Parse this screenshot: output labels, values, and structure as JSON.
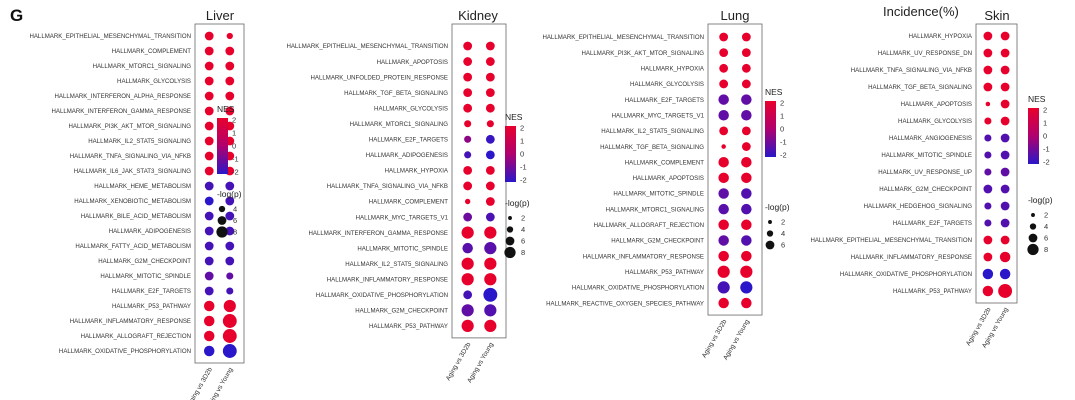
{
  "figure": {
    "panel_letter": "G",
    "header_text": "Incidence(%)",
    "colors": {
      "high": "#e8002d",
      "mid": "#b0006e",
      "low": "#2a17c9"
    }
  },
  "chart_data": [
    {
      "type": "dotplot",
      "title": "Liver",
      "columns": [
        "Aging vs 3D2b",
        "Aging vs Young"
      ],
      "rows": [
        {
          "label": "HALLMARK_EPITHELIAL_MESENCHYMAL_TRANSITION",
          "nes": [
            2.0,
            2.0
          ],
          "logp": [
            4,
            2.5
          ]
        },
        {
          "label": "HALLMARK_COMPLEMENT",
          "nes": [
            2.0,
            2.0
          ],
          "logp": [
            4,
            4
          ]
        },
        {
          "label": "HALLMARK_MTORC1_SIGNALING",
          "nes": [
            2.0,
            2.0
          ],
          "logp": [
            4,
            4
          ]
        },
        {
          "label": "HALLMARK_GLYCOLYSIS",
          "nes": [
            2.0,
            2.0
          ],
          "logp": [
            4,
            4
          ]
        },
        {
          "label": "HALLMARK_INTERFERON_ALPHA_RESPONSE",
          "nes": [
            2.0,
            2.0
          ],
          "logp": [
            4,
            4
          ]
        },
        {
          "label": "HALLMARK_INTERFERON_GAMMA_RESPONSE",
          "nes": [
            2.0,
            2.0
          ],
          "logp": [
            4,
            4
          ]
        },
        {
          "label": "HALLMARK_PI3K_AKT_MTOR_SIGNALING",
          "nes": [
            2.0,
            2.0
          ],
          "logp": [
            4,
            4
          ]
        },
        {
          "label": "HALLMARK_IL2_STAT5_SIGNALING",
          "nes": [
            2.0,
            2.0
          ],
          "logp": [
            4,
            4
          ]
        },
        {
          "label": "HALLMARK_TNFA_SIGNALING_VIA_NFKB",
          "nes": [
            2.0,
            2.0
          ],
          "logp": [
            4,
            4
          ]
        },
        {
          "label": "HALLMARK_IL6_JAK_STAT3_SIGNALING",
          "nes": [
            2.0,
            2.0
          ],
          "logp": [
            4,
            4
          ]
        },
        {
          "label": "HALLMARK_HEME_METABOLISM",
          "nes": [
            -1.6,
            -1.6
          ],
          "logp": [
            4,
            4
          ]
        },
        {
          "label": "HALLMARK_XENOBIOTIC_METABOLISM",
          "nes": [
            -2.5,
            -1.6
          ],
          "logp": [
            4,
            4
          ]
        },
        {
          "label": "HALLMARK_BILE_ACID_METABOLISM",
          "nes": [
            -1.6,
            -1.6
          ],
          "logp": [
            4,
            4
          ]
        },
        {
          "label": "HALLMARK_ADIPOGENESIS",
          "nes": [
            -1.6,
            -1.6
          ],
          "logp": [
            4,
            4
          ]
        },
        {
          "label": "HALLMARK_FATTY_ACID_METABOLISM",
          "nes": [
            -1.6,
            -1.6
          ],
          "logp": [
            4,
            4
          ]
        },
        {
          "label": "HALLMARK_G2M_CHECKPOINT",
          "nes": [
            -1.6,
            -1.6
          ],
          "logp": [
            4,
            4
          ]
        },
        {
          "label": "HALLMARK_MITOTIC_SPINDLE",
          "nes": [
            -1.2,
            -1.2
          ],
          "logp": [
            4,
            3
          ]
        },
        {
          "label": "HALLMARK_E2F_TARGETS",
          "nes": [
            -1.6,
            -1.6
          ],
          "logp": [
            4,
            3
          ]
        },
        {
          "label": "HALLMARK_P53_PATHWAY",
          "nes": [
            2.0,
            2.0
          ],
          "logp": [
            5,
            6
          ]
        },
        {
          "label": "HALLMARK_INFLAMMATORY_RESPONSE",
          "nes": [
            2.0,
            2.0
          ],
          "logp": [
            5,
            7
          ]
        },
        {
          "label": "HALLMARK_ALLOGRAFT_REJECTION",
          "nes": [
            2.0,
            2.0
          ],
          "logp": [
            5,
            7
          ]
        },
        {
          "label": "HALLMARK_OXIDATIVE_PHOSPHORYLATION",
          "nes": [
            -2.5,
            -2.5
          ],
          "logp": [
            5,
            7
          ]
        }
      ],
      "legend": {
        "color_title": "NES",
        "color_ticks": [
          "2",
          "1",
          "0",
          "-1",
          "-2"
        ],
        "size_title": "-log(p)",
        "size_ticks": [
          "4",
          "6",
          "8"
        ]
      }
    },
    {
      "type": "dotplot",
      "title": "Kidney",
      "columns": [
        "Aging vs 3D2b",
        "Aging vs Young"
      ],
      "rows": [
        {
          "label": "HALLMARK_EPITHELIAL_MESENCHYMAL_TRANSITION",
          "nes": [
            2.0,
            2.0
          ],
          "logp": [
            4,
            4
          ]
        },
        {
          "label": "HALLMARK_APOPTOSIS",
          "nes": [
            2.0,
            2.0
          ],
          "logp": [
            4,
            4
          ]
        },
        {
          "label": "HALLMARK_UNFOLDED_PROTEIN_RESPONSE",
          "nes": [
            2.0,
            2.0
          ],
          "logp": [
            4,
            4
          ]
        },
        {
          "label": "HALLMARK_TGF_BETA_SIGNALING",
          "nes": [
            2.0,
            2.0
          ],
          "logp": [
            4,
            4
          ]
        },
        {
          "label": "HALLMARK_GLYCOLYSIS",
          "nes": [
            2.0,
            2.0
          ],
          "logp": [
            4,
            4
          ]
        },
        {
          "label": "HALLMARK_MTORC1_SIGNALING",
          "nes": [
            2.0,
            2.0
          ],
          "logp": [
            3,
            3
          ]
        },
        {
          "label": "HALLMARK_E2F_TARGETS",
          "nes": [
            -0.5,
            -1.8
          ],
          "logp": [
            3,
            4
          ]
        },
        {
          "label": "HALLMARK_ADIPOGENESIS",
          "nes": [
            -1.6,
            -2.0
          ],
          "logp": [
            3,
            4
          ]
        },
        {
          "label": "HALLMARK_HYPOXIA",
          "nes": [
            2.0,
            2.0
          ],
          "logp": [
            4,
            4
          ]
        },
        {
          "label": "HALLMARK_TNFA_SIGNALING_VIA_NFKB",
          "nes": [
            2.0,
            2.0
          ],
          "logp": [
            4,
            4
          ]
        },
        {
          "label": "HALLMARK_COMPLEMENT",
          "nes": [
            2.0,
            2.0
          ],
          "logp": [
            2,
            4
          ]
        },
        {
          "label": "HALLMARK_MYC_TARGETS_V1",
          "nes": [
            -1.0,
            -1.5
          ],
          "logp": [
            4,
            4
          ]
        },
        {
          "label": "HALLMARK_INTERFERON_GAMMA_RESPONSE",
          "nes": [
            2.0,
            2.0
          ],
          "logp": [
            6,
            6
          ]
        },
        {
          "label": "HALLMARK_MITOTIC_SPINDLE",
          "nes": [
            -1.3,
            -1.3
          ],
          "logp": [
            5,
            6
          ]
        },
        {
          "label": "HALLMARK_IL2_STAT5_SIGNALING",
          "nes": [
            2.0,
            2.0
          ],
          "logp": [
            6,
            6
          ]
        },
        {
          "label": "HALLMARK_INFLAMMATORY_RESPONSE",
          "nes": [
            2.0,
            2.0
          ],
          "logp": [
            6,
            6
          ]
        },
        {
          "label": "HALLMARK_OXIDATIVE_PHOSPHORYLATION",
          "nes": [
            -1.6,
            -2.5
          ],
          "logp": [
            4,
            7
          ]
        },
        {
          "label": "HALLMARK_G2M_CHECKPOINT",
          "nes": [
            -1.2,
            -1.4
          ],
          "logp": [
            6,
            6
          ]
        },
        {
          "label": "HALLMARK_P53_PATHWAY",
          "nes": [
            2.0,
            2.0
          ],
          "logp": [
            6,
            6
          ]
        }
      ],
      "legend": {
        "color_title": "NES",
        "color_ticks": [
          "2",
          "1",
          "0",
          "-1",
          "-2"
        ],
        "size_title": "-log(p)",
        "size_ticks": [
          "2",
          "4",
          "6",
          "8"
        ]
      }
    },
    {
      "type": "dotplot",
      "title": "Lung",
      "columns": [
        "Aging vs 3D2b",
        "Aging vs Young"
      ],
      "rows": [
        {
          "label": "HALLMARK_EPITHELIAL_MESENCHYMAL_TRANSITION",
          "nes": [
            2.0,
            2.0
          ],
          "logp": [
            4,
            4
          ]
        },
        {
          "label": "HALLMARK_PI3K_AKT_MTOR_SIGNALING",
          "nes": [
            2.0,
            2.0
          ],
          "logp": [
            4,
            4
          ]
        },
        {
          "label": "HALLMARK_HYPOXIA",
          "nes": [
            2.0,
            2.0
          ],
          "logp": [
            4,
            4
          ]
        },
        {
          "label": "HALLMARK_GLYCOLYSIS",
          "nes": [
            2.0,
            2.0
          ],
          "logp": [
            4,
            4
          ]
        },
        {
          "label": "HALLMARK_E2F_TARGETS",
          "nes": [
            -1.2,
            -1.2
          ],
          "logp": [
            5,
            5
          ]
        },
        {
          "label": "HALLMARK_MYC_TARGETS_V1",
          "nes": [
            -1.2,
            -1.2
          ],
          "logp": [
            5,
            5
          ]
        },
        {
          "label": "HALLMARK_IL2_STAT5_SIGNALING",
          "nes": [
            2.0,
            2.0
          ],
          "logp": [
            4,
            4
          ]
        },
        {
          "label": "HALLMARK_TGF_BETA_SIGNALING",
          "nes": [
            2.0,
            2.0
          ],
          "logp": [
            1.5,
            4
          ]
        },
        {
          "label": "HALLMARK_COMPLEMENT",
          "nes": [
            2.0,
            2.0
          ],
          "logp": [
            5,
            5
          ]
        },
        {
          "label": "HALLMARK_APOPTOSIS",
          "nes": [
            2.0,
            2.0
          ],
          "logp": [
            5,
            5
          ]
        },
        {
          "label": "HALLMARK_MITOTIC_SPINDLE",
          "nes": [
            -1.2,
            -1.4
          ],
          "logp": [
            5,
            5
          ]
        },
        {
          "label": "HALLMARK_MTORC1_SIGNALING",
          "nes": [
            -1.3,
            -1.4
          ],
          "logp": [
            5,
            5
          ]
        },
        {
          "label": "HALLMARK_ALLOGRAFT_REJECTION",
          "nes": [
            2.0,
            2.0
          ],
          "logp": [
            5,
            5
          ]
        },
        {
          "label": "HALLMARK_G2M_CHECKPOINT",
          "nes": [
            -1.2,
            -1.4
          ],
          "logp": [
            5,
            5
          ]
        },
        {
          "label": "HALLMARK_INFLAMMATORY_RESPONSE",
          "nes": [
            2.0,
            2.0
          ],
          "logp": [
            5,
            5
          ]
        },
        {
          "label": "HALLMARK_P53_PATHWAY",
          "nes": [
            2.0,
            2.0
          ],
          "logp": [
            6,
            6
          ]
        },
        {
          "label": "HALLMARK_OXIDATIVE_PHOSPHORYLATION",
          "nes": [
            -1.6,
            -2.5
          ],
          "logp": [
            6,
            6
          ]
        },
        {
          "label": "HALLMARK_REACTIVE_OXYGEN_SPECIES_PATHWAY",
          "nes": [
            2.0,
            2.0
          ],
          "logp": [
            5,
            5
          ]
        }
      ],
      "legend": {
        "color_title": "NES",
        "color_ticks": [
          "2",
          "1",
          "0",
          "-1",
          "-2"
        ],
        "size_title": "-log(p)",
        "size_ticks": [
          "2",
          "4",
          "6"
        ]
      }
    },
    {
      "type": "dotplot",
      "title": "Skin",
      "columns": [
        "Aging vs 3D2b",
        "Aging vs Young"
      ],
      "rows": [
        {
          "label": "HALLMARK_HYPOXIA",
          "nes": [
            2.0,
            2.0
          ],
          "logp": [
            4,
            4
          ]
        },
        {
          "label": "HALLMARK_UV_RESPONSE_DN",
          "nes": [
            2.0,
            2.0
          ],
          "logp": [
            4,
            4
          ]
        },
        {
          "label": "HALLMARK_TNFA_SIGNALING_VIA_NFKB",
          "nes": [
            2.0,
            2.0
          ],
          "logp": [
            4,
            4
          ]
        },
        {
          "label": "HALLMARK_TGF_BETA_SIGNALING",
          "nes": [
            2.0,
            2.0
          ],
          "logp": [
            4,
            4
          ]
        },
        {
          "label": "HALLMARK_APOPTOSIS",
          "nes": [
            2.0,
            2.0
          ],
          "logp": [
            1.5,
            4
          ]
        },
        {
          "label": "HALLMARK_GLYCOLYSIS",
          "nes": [
            2.0,
            2.0
          ],
          "logp": [
            3,
            4
          ]
        },
        {
          "label": "HALLMARK_ANGIOGENESIS",
          "nes": [
            -1.4,
            -1.4
          ],
          "logp": [
            3,
            4
          ]
        },
        {
          "label": "HALLMARK_MITOTIC_SPINDLE",
          "nes": [
            -1.4,
            -1.4
          ],
          "logp": [
            3,
            4
          ]
        },
        {
          "label": "HALLMARK_UV_RESPONSE_UP",
          "nes": [
            -1.2,
            -1.2
          ],
          "logp": [
            3,
            4
          ]
        },
        {
          "label": "HALLMARK_G2M_CHECKPOINT",
          "nes": [
            -1.4,
            -1.4
          ],
          "logp": [
            4,
            4
          ]
        },
        {
          "label": "HALLMARK_HEDGEHOG_SIGNALING",
          "nes": [
            -1.4,
            -1.4
          ],
          "logp": [
            3,
            4
          ]
        },
        {
          "label": "HALLMARK_E2F_TARGETS",
          "nes": [
            -1.4,
            -1.4
          ],
          "logp": [
            3,
            4
          ]
        },
        {
          "label": "HALLMARK_EPITHELIAL_MESENCHYMAL_TRANSITION",
          "nes": [
            2.0,
            2.0
          ],
          "logp": [
            4,
            4
          ]
        },
        {
          "label": "HALLMARK_INFLAMMATORY_RESPONSE",
          "nes": [
            2.0,
            2.0
          ],
          "logp": [
            4,
            5
          ]
        },
        {
          "label": "HALLMARK_OXIDATIVE_PHOSPHORYLATION",
          "nes": [
            -2.5,
            -2.5
          ],
          "logp": [
            5,
            5
          ]
        },
        {
          "label": "HALLMARK_P53_PATHWAY",
          "nes": [
            2.0,
            2.0
          ],
          "logp": [
            5,
            7
          ]
        }
      ],
      "legend": {
        "color_title": "NES",
        "color_ticks": [
          "2",
          "1",
          "0",
          "-1",
          "-2"
        ],
        "size_title": "-log(p)",
        "size_ticks": [
          "2",
          "4",
          "6",
          "8"
        ]
      }
    }
  ]
}
